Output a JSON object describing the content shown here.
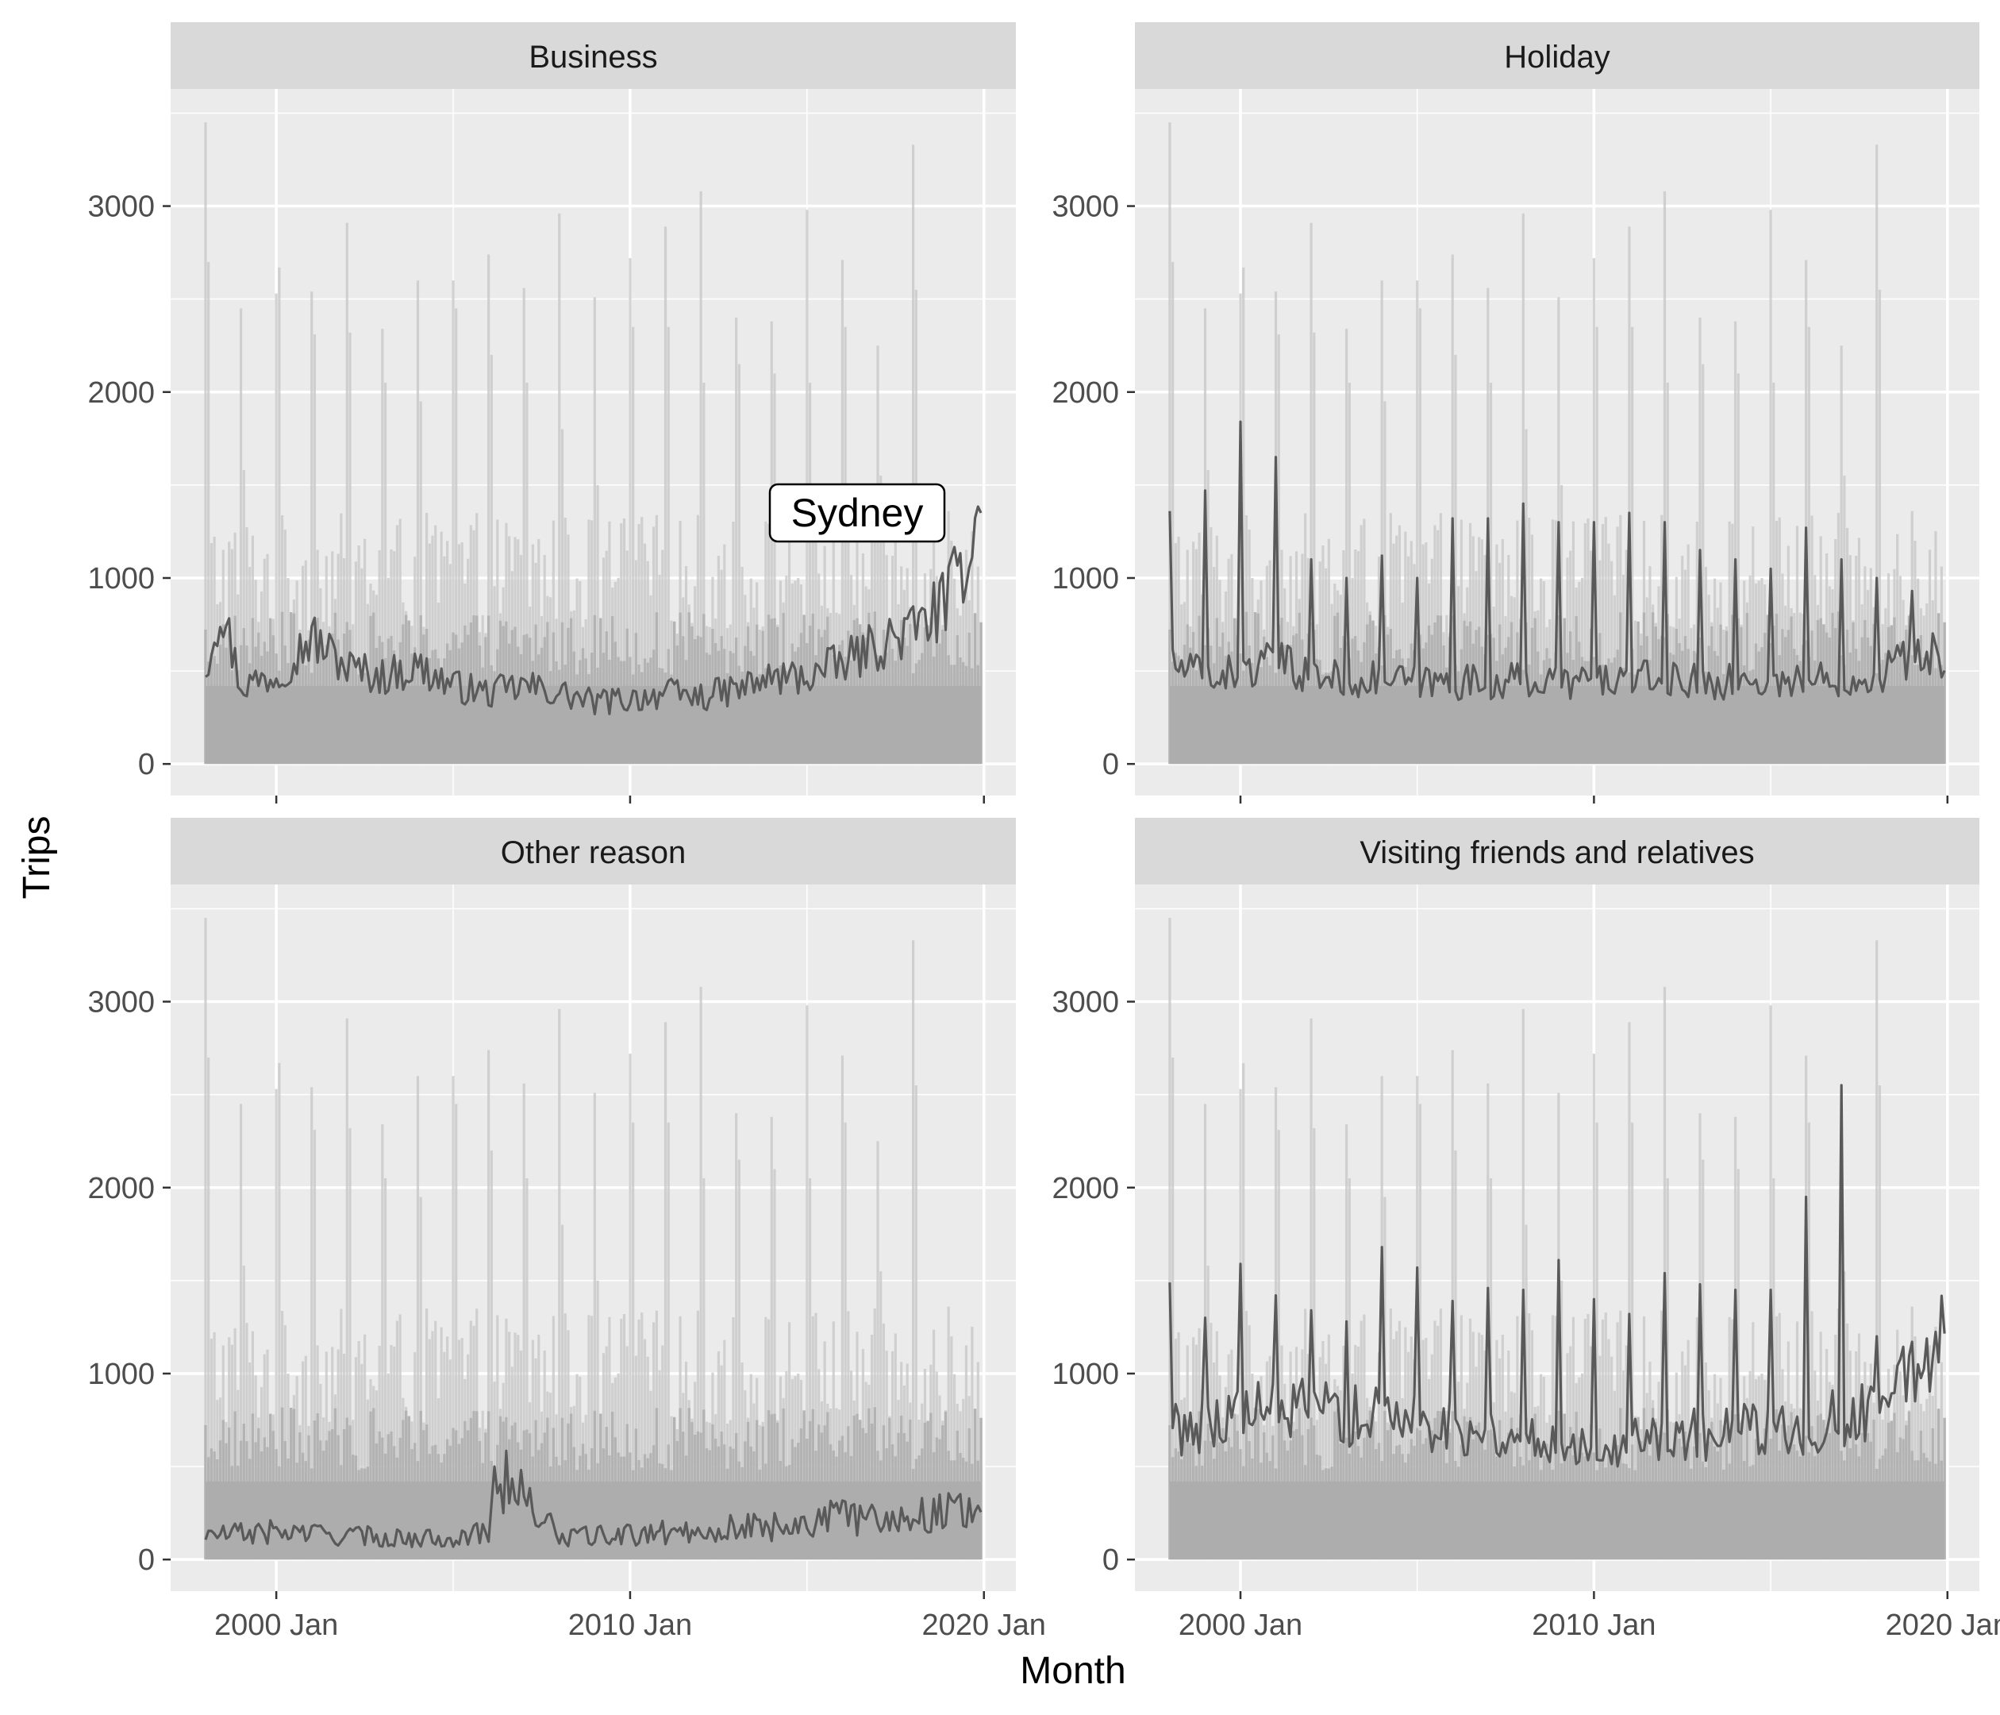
{
  "chart_data": {
    "type": "line",
    "xlabel": "Month",
    "ylabel": "Trips",
    "x_range": [
      "1998 Jan",
      "2019 Dec"
    ],
    "x_ticks": [
      "2000 Jan",
      "2010 Jan",
      "2020 Jan"
    ],
    "x_ticks_clipped": [
      "2000 Jan",
      "2010 Jan",
      "2020 Jan"
    ],
    "y_ticks": [
      0,
      1000,
      2000,
      3000
    ],
    "ylim": [
      -170,
      3630
    ],
    "grid": true,
    "annotation": {
      "text": "Sydney",
      "panel": "Business",
      "x": "2016 Jun",
      "y": 1350
    },
    "background_series_note": "Light grey ribbons show all other regions' trips for the purpose, up to about 3450 trips",
    "highlighted_region": "Sydney",
    "panels": [
      {
        "name": "Business",
        "highlight_series": {
          "name": "Sydney",
          "anchors": [
            [
              "1998 Jan",
              520
            ],
            [
              "1998 Jun",
              870
            ],
            [
              "1999 Jan",
              420
            ],
            [
              "2000 Jan",
              480
            ],
            [
              "2001 Jan",
              680
            ],
            [
              "2002 Jan",
              520
            ],
            [
              "2003 Jan",
              470
            ],
            [
              "2004 Jan",
              520
            ],
            [
              "2005 Jan",
              420
            ],
            [
              "2006 Jan",
              380
            ],
            [
              "2007 Jan",
              420
            ],
            [
              "2008 Jan",
              380
            ],
            [
              "2009 Jan",
              330
            ],
            [
              "2010 Jan",
              350
            ],
            [
              "2011 Jan",
              380
            ],
            [
              "2012 Jan",
              360
            ],
            [
              "2013 Jan",
              400
            ],
            [
              "2014 Jan",
              460
            ],
            [
              "2015 Jan",
              470
            ],
            [
              "2016 Jan",
              540
            ],
            [
              "2017 Jan",
              640
            ],
            [
              "2018 Jan",
              720
            ],
            [
              "2019 Jan",
              880
            ],
            [
              "2019 Dec",
              1350
            ]
          ]
        },
        "background_peak": 3450
      },
      {
        "name": "Holiday",
        "highlight_series": {
          "name": "Sydney",
          "anchors": [
            [
              "1998 Jan",
              530
            ],
            [
              "1999 Jan",
              480
            ],
            [
              "2000 Jan",
              480
            ],
            [
              "2001 Jan",
              550
            ],
            [
              "2002 Jan",
              470
            ],
            [
              "2003 Jan",
              460
            ],
            [
              "2004 Jan",
              450
            ],
            [
              "2005 Jan",
              440
            ],
            [
              "2006 Jan",
              440
            ],
            [
              "2007 Jan",
              440
            ],
            [
              "2008 Jan",
              450
            ],
            [
              "2009 Jan",
              440
            ],
            [
              "2010 Jan",
              450
            ],
            [
              "2011 Jan",
              460
            ],
            [
              "2012 Jan",
              450
            ],
            [
              "2013 Jan",
              450
            ],
            [
              "2014 Jan",
              440
            ],
            [
              "2015 Jan",
              450
            ],
            [
              "2016 Jan",
              450
            ],
            [
              "2017 Jan",
              460
            ],
            [
              "2018 Jan",
              480
            ],
            [
              "2019 Jan",
              590
            ],
            [
              "2019 Dec",
              580
            ]
          ],
          "annual_peaks": [
            1360,
            1470,
            1840,
            1650,
            1100,
            1000,
            1120,
            1000,
            1320,
            1320,
            1400,
            1300,
            1300,
            1350,
            1300,
            1150,
            1100,
            1050,
            1270,
            1100,
            1000,
            930
          ]
        },
        "background_peak": 3450
      },
      {
        "name": "Other reason",
        "highlight_series": {
          "name": "Sydney",
          "anchors": [
            [
              "1998 Jan",
              130
            ],
            [
              "2000 Jan",
              150
            ],
            [
              "2002 Jan",
              130
            ],
            [
              "2004 Jan",
              110
            ],
            [
              "2006 Jan",
              140
            ],
            [
              "2006 Mar",
              500
            ],
            [
              "2008 Jan",
              120
            ],
            [
              "2010 Jan",
              130
            ],
            [
              "2012 Jan",
              160
            ],
            [
              "2014 Jan",
              180
            ],
            [
              "2016 Jan",
              230
            ],
            [
              "2018 Jan",
              230
            ],
            [
              "2019 Dec",
              300
            ]
          ]
        },
        "background_peak": 3450
      },
      {
        "name": "Visiting friends and relatives",
        "highlight_series": {
          "name": "Sydney",
          "anchors": [
            [
              "1998 Jan",
              700
            ],
            [
              "2000 Jan",
              780
            ],
            [
              "2002 Jan",
              800
            ],
            [
              "2004 Jan",
              760
            ],
            [
              "2006 Jan",
              720
            ],
            [
              "2008 Jan",
              650
            ],
            [
              "2010 Jan",
              620
            ],
            [
              "2012 Jan",
              660
            ],
            [
              "2014 Jan",
              680
            ],
            [
              "2016 Jan",
              720
            ],
            [
              "2018 Jan",
              800
            ],
            [
              "2019 Dec",
              1230
            ]
          ],
          "annual_peaks": [
            1490,
            1300,
            1590,
            1420,
            1340,
            1280,
            1680,
            1570,
            1390,
            1460,
            1450,
            1610,
            1400,
            1320,
            1540,
            1480,
            1450,
            1450,
            1950,
            2550,
            1200
          ]
        },
        "background_peak": 3450
      }
    ]
  }
}
